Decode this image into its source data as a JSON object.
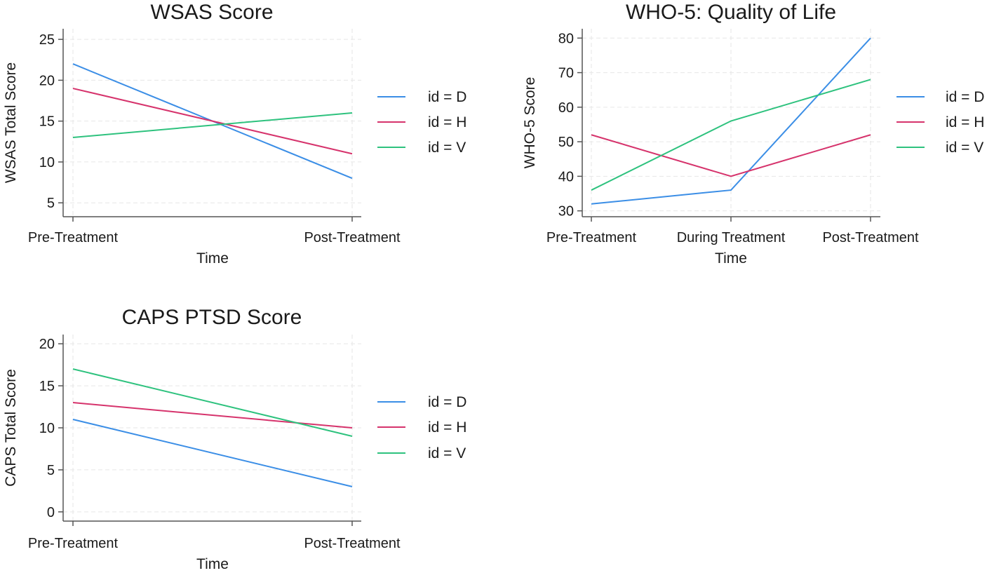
{
  "colors": {
    "D": "#3b8ee6",
    "H": "#d6336c",
    "V": "#2ec27e",
    "axis": "#555555",
    "grid": "#e6e6e6"
  },
  "chart_data": [
    {
      "type": "line",
      "title": "WSAS Score",
      "xlabel": "Time",
      "ylabel": "WSAS Total Score",
      "categories": [
        "Pre-Treatment",
        "Post-Treatment"
      ],
      "yticks": [
        5,
        10,
        15,
        20,
        25
      ],
      "ylim": [
        3.3,
        26.3
      ],
      "series": [
        {
          "name": "id = D",
          "key": "D",
          "values": [
            22,
            8
          ]
        },
        {
          "name": "id = H",
          "key": "H",
          "values": [
            19,
            11
          ]
        },
        {
          "name": "id = V",
          "key": "V",
          "values": [
            13,
            16
          ]
        }
      ],
      "legend": "right"
    },
    {
      "type": "line",
      "title": "WHO-5: Quality of Life",
      "xlabel": "Time",
      "ylabel": "WHO-5 Score",
      "categories": [
        "Pre-Treatment",
        "During Treatment",
        "Post-Treatment"
      ],
      "yticks": [
        30,
        40,
        50,
        60,
        70,
        80
      ],
      "ylim": [
        28.3,
        82.7
      ],
      "series": [
        {
          "name": "id = D",
          "key": "D",
          "values": [
            32,
            36,
            80
          ]
        },
        {
          "name": "id = H",
          "key": "H",
          "values": [
            52,
            40,
            52
          ]
        },
        {
          "name": "id = V",
          "key": "V",
          "values": [
            36,
            56,
            68
          ]
        }
      ],
      "legend": "right"
    },
    {
      "type": "line",
      "title": "CAPS PTSD Score",
      "xlabel": "Time",
      "ylabel": "CAPS Total Score",
      "categories": [
        "Pre-Treatment",
        "Post-Treatment"
      ],
      "yticks": [
        0,
        5,
        10,
        15,
        20
      ],
      "ylim": [
        -1.1,
        21.1
      ],
      "series": [
        {
          "name": "id = D",
          "key": "D",
          "values": [
            11,
            3
          ]
        },
        {
          "name": "id = H",
          "key": "H",
          "values": [
            13,
            10
          ]
        },
        {
          "name": "id = V",
          "key": "V",
          "values": [
            17,
            9
          ]
        }
      ],
      "legend": "right"
    }
  ]
}
